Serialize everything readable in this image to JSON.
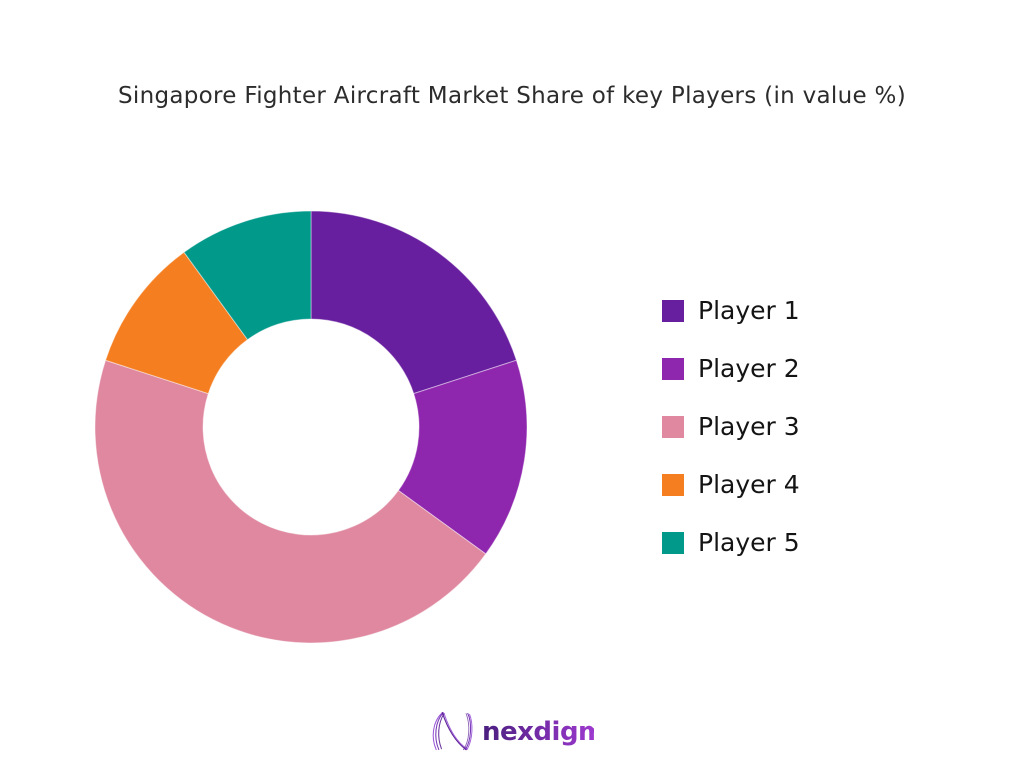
{
  "title": "Singapore Fighter Aircraft Market Share of key Players (in value %)",
  "chart_data": {
    "type": "pie",
    "subtype": "donut",
    "title": "Singapore Fighter Aircraft Market Share of key Players (in value %)",
    "categories": [
      "Player 1",
      "Player 2",
      "Player 3",
      "Player 4",
      "Player 5"
    ],
    "values": [
      20,
      15,
      45,
      10,
      10
    ],
    "unit": "value %",
    "colors": [
      "#671E9F",
      "#8F27AE",
      "#DF88A0",
      "#F57E20",
      "#00998A"
    ],
    "start_angle_deg": 0,
    "direction": "clockwise",
    "inner_radius_ratio": 0.5,
    "legend_position": "right",
    "data_labels_shown": false
  },
  "legend": {
    "items": [
      {
        "label": "Player 1"
      },
      {
        "label": "Player 2"
      },
      {
        "label": "Player 3"
      },
      {
        "label": "Player 4"
      },
      {
        "label": "Player 5"
      }
    ]
  },
  "footer": {
    "brand": "nexdigm",
    "brand_color_start": "#4A1F7E",
    "brand_color_end": "#A43BD6"
  }
}
